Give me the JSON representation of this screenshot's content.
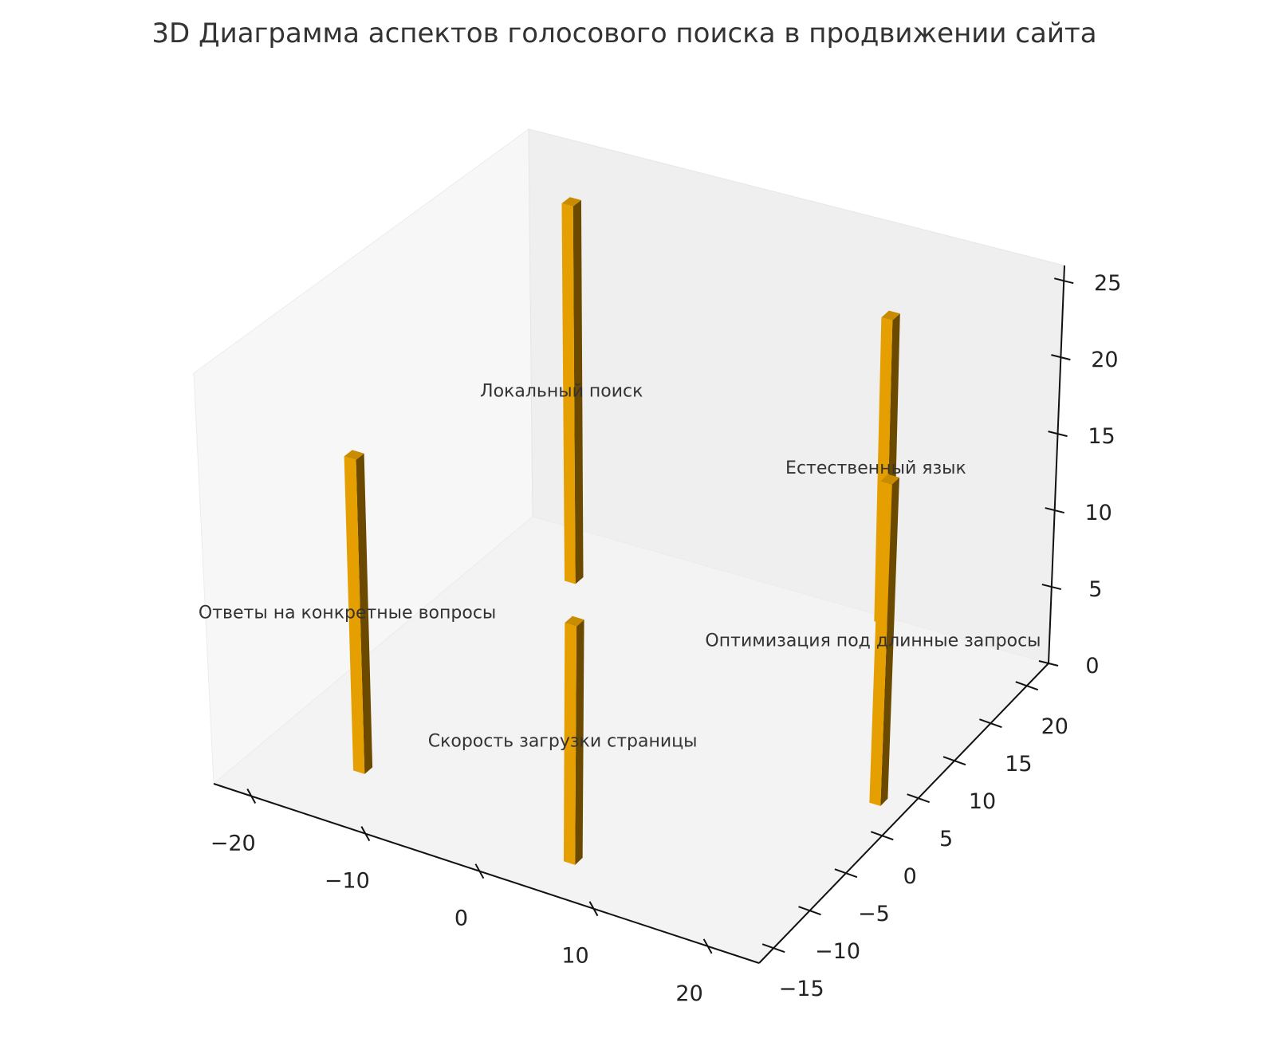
{
  "chart_data": {
    "type": "bar3d",
    "title": "3D Диаграмма аспектов голосового поиска в продвижении сайта",
    "xlabel": "",
    "ylabel": "",
    "zlabel": "",
    "xlim": [
      -23.3,
      24.5
    ],
    "ylim": [
      -17,
      23
    ],
    "zlim": [
      0,
      26
    ],
    "x_ticks": [
      -20,
      -10,
      0,
      10,
      20
    ],
    "y_ticks": [
      -15,
      -10,
      -5,
      0,
      5,
      10,
      15,
      20
    ],
    "z_ticks": [
      0,
      5,
      10,
      15,
      20,
      25
    ],
    "grid": false,
    "bar_color": "#E69F00",
    "bar_side_color": "#6B4A00",
    "bar_top_color": "#C98B00",
    "bars": [
      {
        "label": "Ответы на конкретные вопросы",
        "x": -15.4,
        "y": -10.7,
        "z": 20
      },
      {
        "label": "Локальный поиск",
        "x": -15.9,
        "y": 16.9,
        "z": 25
      },
      {
        "label": "Естественный язык",
        "x": 8.9,
        "y": 22.2,
        "z": 20
      },
      {
        "label": "Оптимизация под длинные запросы",
        "x": 21.4,
        "y": 3,
        "z": 20.5
      },
      {
        "label": "Скорость загрузки страницы",
        "x": 4.8,
        "y": -13.1,
        "z": 15
      }
    ]
  }
}
